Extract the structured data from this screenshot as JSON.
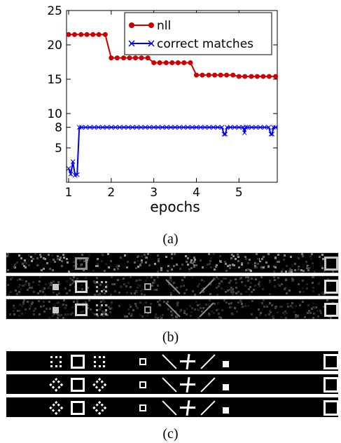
{
  "chart_data": {
    "type": "line",
    "xlabel": "epochs",
    "ylabel": "",
    "xlim": [
      0.95,
      5.9
    ],
    "ylim": [
      0,
      25
    ],
    "xticks": [
      1,
      2,
      3,
      4,
      5
    ],
    "yticks": [
      5,
      8,
      10,
      15,
      20,
      25
    ],
    "grid": false,
    "legend": "top-right",
    "series": [
      {
        "name": "nll",
        "color": "#cc0000",
        "marker": "circle",
        "x": [
          1.0,
          1.14,
          1.29,
          1.43,
          1.57,
          1.71,
          1.86,
          2.0,
          2.14,
          2.29,
          2.43,
          2.57,
          2.71,
          2.86,
          3.0,
          3.14,
          3.29,
          3.43,
          3.57,
          3.71,
          3.86,
          4.0,
          4.14,
          4.29,
          4.43,
          4.57,
          4.71,
          4.86,
          5.0,
          5.14,
          5.29,
          5.43,
          5.57,
          5.71,
          5.86
        ],
        "values": [
          21.5,
          21.5,
          21.5,
          21.5,
          21.5,
          21.5,
          21.5,
          18.1,
          18.1,
          18.1,
          18.1,
          18.1,
          18.1,
          18.1,
          17.4,
          17.4,
          17.4,
          17.4,
          17.4,
          17.4,
          17.4,
          15.6,
          15.6,
          15.6,
          15.6,
          15.6,
          15.6,
          15.6,
          15.4,
          15.4,
          15.4,
          15.4,
          15.4,
          15.4,
          15.4
        ]
      },
      {
        "name": "correct matches",
        "color": "#0000ee",
        "marker": "x",
        "x": [
          1.0,
          1.05,
          1.1,
          1.15,
          1.2,
          1.25,
          1.3,
          1.4,
          1.5,
          1.6,
          1.7,
          1.8,
          1.9,
          2.0,
          2.1,
          2.2,
          2.3,
          2.4,
          2.5,
          2.6,
          2.7,
          2.8,
          2.9,
          3.0,
          3.1,
          3.2,
          3.3,
          3.4,
          3.5,
          3.6,
          3.7,
          3.8,
          3.9,
          4.0,
          4.1,
          4.2,
          4.3,
          4.4,
          4.5,
          4.6,
          4.65,
          4.68,
          4.72,
          4.8,
          4.9,
          5.0,
          5.1,
          5.13,
          5.16,
          5.2,
          5.3,
          5.4,
          5.5,
          5.6,
          5.7,
          5.75,
          5.78,
          5.81,
          5.86
        ],
        "values": [
          2,
          1.2,
          3,
          1,
          1.1,
          8,
          8,
          8,
          8,
          8,
          8,
          8,
          8,
          8,
          8,
          8,
          8,
          8,
          8,
          8,
          8,
          8,
          8,
          8,
          8,
          8,
          8,
          8,
          8,
          8,
          8,
          8,
          8,
          8,
          8,
          8,
          8,
          8,
          8,
          8,
          7,
          7,
          8,
          8,
          8,
          8,
          8,
          7.2,
          8,
          8,
          8,
          8,
          8,
          8,
          8,
          7,
          7,
          8,
          8
        ]
      }
    ]
  },
  "captions": {
    "a": "(a)",
    "b": "(b)",
    "c": "(c)"
  },
  "filter_strips": {
    "rows": 3,
    "columns": 20
  }
}
